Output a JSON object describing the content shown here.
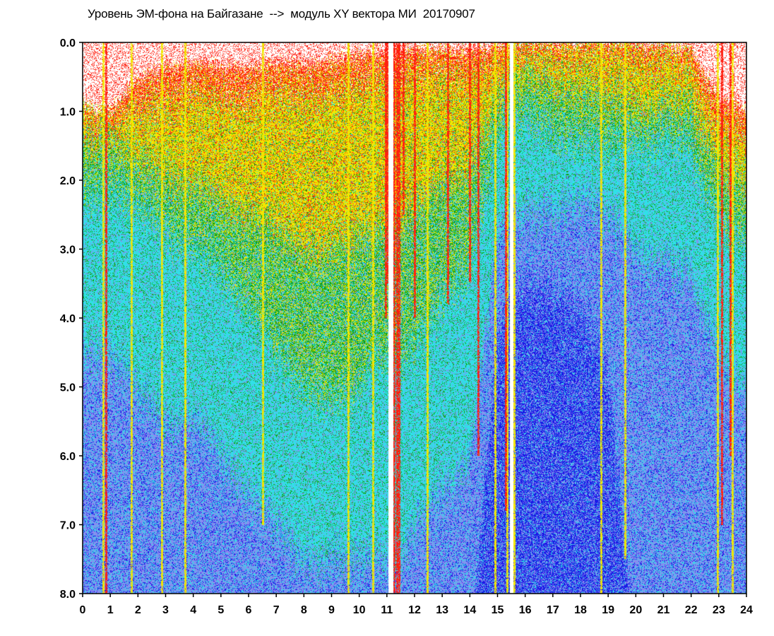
{
  "chart_data": {
    "type": "heatmap",
    "title": "Уровень ЭМ-фона на Байгазане  -->  модуль XY вектора МИ  20170907",
    "xlabel": "",
    "ylabel": "",
    "xlim": [
      0,
      24
    ],
    "ylim": [
      0.0,
      8.0
    ],
    "y_inverted": true,
    "x_ticks": [
      "0",
      "1",
      "2",
      "3",
      "4",
      "5",
      "6",
      "7",
      "8",
      "9",
      "10",
      "11",
      "12",
      "13",
      "14",
      "15",
      "16",
      "17",
      "18",
      "19",
      "20",
      "21",
      "22",
      "23",
      "24"
    ],
    "y_ticks": [
      "0.0",
      "1.0",
      "2.0",
      "3.0",
      "4.0",
      "5.0",
      "6.0",
      "7.0",
      "8.0"
    ],
    "grid": false,
    "legend": "none",
    "color_scale": [
      "#ffffff",
      "#1a1ae6",
      "#8a8af0",
      "#30e0e8",
      "#10a010",
      "#f2e600",
      "#ff2010"
    ],
    "x_hours": [
      0,
      1,
      2,
      3,
      4,
      5,
      6,
      7,
      8,
      9,
      10,
      10.5,
      11,
      11.5,
      12,
      13,
      14,
      15,
      15.4,
      16,
      17,
      18,
      19,
      20,
      21,
      22,
      23,
      23.5,
      24
    ],
    "boundaries": {
      "red_upper_edge": [
        0.9,
        1.0,
        0.5,
        0.35,
        0.3,
        0.35,
        0.35,
        0.3,
        0.3,
        0.25,
        0.15,
        0.15,
        0.15,
        0.1,
        0.1,
        0.1,
        0.1,
        0.05,
        0.05,
        0.0,
        0.0,
        0.0,
        0.0,
        0.0,
        0.05,
        0.1,
        0.8,
        0.9,
        1.0
      ],
      "red_lower_edge": [
        1.0,
        1.1,
        0.9,
        0.8,
        0.75,
        0.8,
        0.8,
        0.7,
        0.7,
        0.65,
        0.6,
        0.6,
        0.5,
        0.5,
        0.5,
        0.4,
        0.4,
        0.3,
        0.2,
        0.1,
        0.1,
        0.1,
        0.1,
        0.15,
        0.2,
        0.3,
        1.2,
        1.3,
        1.3
      ],
      "yellow_lower_edge": [
        1.5,
        1.4,
        1.6,
        1.9,
        2.1,
        2.3,
        2.5,
        2.7,
        3.0,
        3.0,
        2.8,
        2.7,
        2.6,
        2.6,
        2.4,
        2.0,
        1.8,
        0.8,
        0.5,
        0.5,
        0.6,
        0.7,
        0.8,
        0.9,
        0.9,
        0.9,
        1.8,
        2.0,
        2.0
      ],
      "green_lower_edge": [
        2.2,
        2.1,
        2.3,
        2.7,
        3.0,
        3.3,
        3.8,
        4.5,
        5.0,
        5.2,
        5.0,
        4.6,
        4.6,
        4.6,
        4.4,
        3.7,
        3.2,
        1.4,
        1.0,
        1.1,
        1.3,
        1.4,
        1.5,
        1.4,
        1.4,
        1.5,
        2.6,
        2.9,
        2.9
      ],
      "purple_region_depth": [
        4.5,
        4.5,
        5.0,
        5.5,
        5.5,
        6.0,
        6.5,
        7.0,
        7.5,
        7.5,
        7.5,
        7.5,
        7.5,
        7.5,
        7.0,
        6.5,
        6.0,
        2.8,
        2.5,
        2.5,
        2.4,
        2.3,
        2.5,
        3.0,
        3.2,
        3.4,
        4.5,
        5.0,
        5.0
      ],
      "blue_core_depth": [
        9,
        9,
        9,
        9,
        9,
        9,
        9,
        9,
        9,
        9,
        9,
        9,
        9,
        9,
        9,
        9,
        9,
        4.2,
        3.8,
        3.5,
        3.6,
        3.8,
        4.8,
        9,
        9,
        9,
        9,
        9,
        9
      ]
    },
    "red_streaks": [
      {
        "x": 0.85,
        "depth": 8.0
      },
      {
        "x": 10.95,
        "depth": 4.0
      },
      {
        "x": 11.0,
        "depth": 3.5
      },
      {
        "x": 11.25,
        "depth": 8.0
      },
      {
        "x": 11.35,
        "depth": 8.0
      },
      {
        "x": 11.45,
        "depth": 8.0
      },
      {
        "x": 11.6,
        "depth": 2.5
      },
      {
        "x": 12.0,
        "depth": 4.0
      },
      {
        "x": 13.2,
        "depth": 3.8
      },
      {
        "x": 14.0,
        "depth": 3.5
      },
      {
        "x": 14.3,
        "depth": 6.0
      },
      {
        "x": 15.3,
        "depth": 6.8
      },
      {
        "x": 23.1,
        "depth": 7.0
      },
      {
        "x": 23.4,
        "depth": 6.0
      }
    ],
    "yellow_streaks": [
      {
        "x": 0.75,
        "depth": 8.0
      },
      {
        "x": 1.75,
        "depth": 8.0
      },
      {
        "x": 2.85,
        "depth": 8.0
      },
      {
        "x": 3.7,
        "depth": 8.0
      },
      {
        "x": 6.5,
        "depth": 7.0
      },
      {
        "x": 9.6,
        "depth": 8.0
      },
      {
        "x": 10.5,
        "depth": 8.0
      },
      {
        "x": 12.45,
        "depth": 8.0
      },
      {
        "x": 14.9,
        "depth": 8.0
      },
      {
        "x": 15.35,
        "depth": 8.0
      },
      {
        "x": 15.6,
        "depth": 8.0
      },
      {
        "x": 18.75,
        "depth": 8.0
      },
      {
        "x": 19.6,
        "depth": 7.5
      },
      {
        "x": 22.95,
        "depth": 8.0
      },
      {
        "x": 23.5,
        "depth": 8.0
      }
    ],
    "white_gaps": [
      {
        "x_start": 11.05,
        "x_end": 11.2
      },
      {
        "x_start": 15.45,
        "x_end": 15.55
      }
    ]
  }
}
